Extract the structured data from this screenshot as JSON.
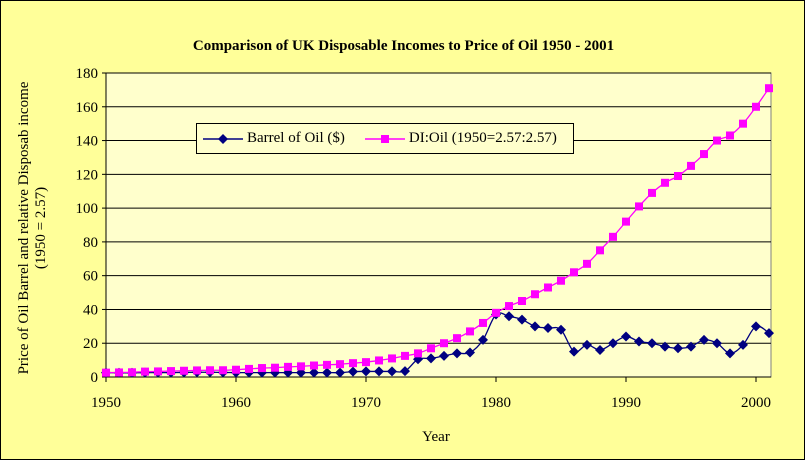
{
  "chart_data": {
    "type": "line",
    "title": "Comparison of UK Disposable Incomes to Price of Oil 1950 - 2001",
    "xlabel": "Year",
    "ylabel": "Price of Oil Barrel and relative Disposab income (1950 = 2.57)",
    "xlim": [
      1950,
      2001
    ],
    "ylim": [
      0,
      180
    ],
    "xticks": [
      "1950",
      "1960",
      "1970",
      "1980",
      "1990",
      "2000"
    ],
    "yticks": [
      "0",
      "20",
      "40",
      "60",
      "80",
      "100",
      "120",
      "140",
      "160",
      "180"
    ],
    "grid": true,
    "legend_position": "top-left",
    "x": [
      1950,
      1951,
      1952,
      1953,
      1954,
      1955,
      1956,
      1957,
      1958,
      1959,
      1960,
      1961,
      1962,
      1963,
      1964,
      1965,
      1966,
      1967,
      1968,
      1969,
      1970,
      1971,
      1972,
      1973,
      1974,
      1975,
      1976,
      1977,
      1978,
      1979,
      1980,
      1981,
      1982,
      1983,
      1984,
      1985,
      1986,
      1987,
      1988,
      1989,
      1990,
      1991,
      1992,
      1993,
      1994,
      1995,
      1996,
      1997,
      1998,
      1999,
      2000,
      2001
    ],
    "series": [
      {
        "name": "Barrel of Oil ($)",
        "color": "#000080",
        "marker": "diamond",
        "values": [
          2.57,
          2.5,
          2.5,
          2.6,
          2.6,
          2.6,
          2.7,
          2.8,
          2.8,
          2.7,
          2.6,
          2.6,
          2.6,
          2.6,
          2.6,
          2.6,
          2.6,
          2.6,
          2.6,
          3.2,
          3.3,
          3.3,
          3.3,
          3.5,
          10.5,
          11,
          12.5,
          14,
          14.5,
          22,
          37,
          36,
          34,
          30,
          29,
          28,
          15,
          19,
          16,
          20,
          24,
          21,
          20,
          18,
          17,
          18,
          22,
          20,
          14,
          19,
          30,
          26
        ]
      },
      {
        "name": "DI:Oil (1950=2.57:2.57)",
        "color": "#ff00ff",
        "marker": "square",
        "values": [
          2.57,
          2.7,
          2.8,
          3.2,
          3.3,
          3.5,
          3.7,
          3.9,
          4,
          4,
          4.3,
          4.8,
          5.3,
          5.5,
          6,
          6.3,
          6.8,
          7.2,
          7.6,
          8.2,
          8.8,
          9.8,
          11,
          12.5,
          14,
          17,
          20,
          23,
          27,
          32,
          38,
          42,
          45,
          49,
          53,
          57,
          62,
          67,
          75,
          83,
          92,
          101,
          109,
          115,
          119,
          125,
          132,
          140,
          143,
          150,
          160,
          171
        ]
      }
    ]
  }
}
